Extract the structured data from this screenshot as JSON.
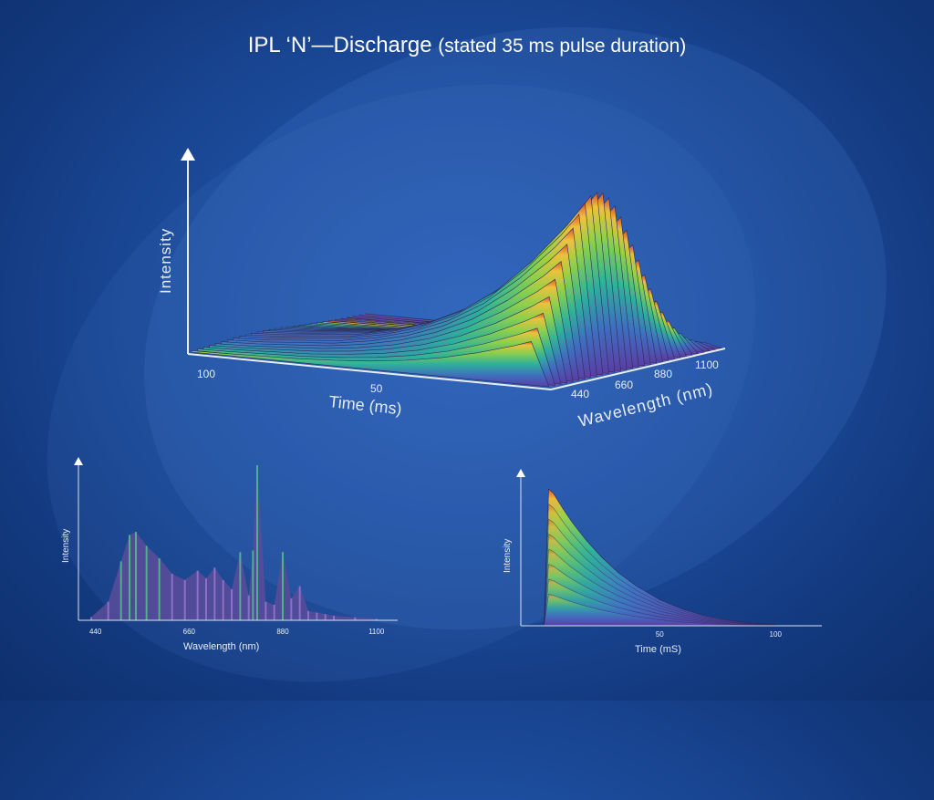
{
  "slide": {
    "title_main": "IPL ‘N’—Discharge",
    "title_sub": "(stated 35 ms pulse duration)"
  },
  "chart_data": [
    {
      "type": "area",
      "view": "3d-surface",
      "ylabel": "Intensity",
      "xlabel": "Time (ms)",
      "zlabel": "Wavelength (nm)",
      "time_ticks": [
        "100",
        "50"
      ],
      "wavelength_ticks": [
        "440",
        "660",
        "880",
        "1100"
      ],
      "x": [
        100,
        90,
        80,
        70,
        60,
        50,
        40,
        30,
        20,
        10,
        5,
        0
      ],
      "series": [
        {
          "values": [
            0.03,
            0.04,
            0.06,
            0.08,
            0.12,
            0.18,
            0.27,
            0.4,
            0.58,
            0.8,
            0.93,
            0.0
          ]
        }
      ]
    },
    {
      "type": "area",
      "ylabel": "Intensity",
      "xlabel": "Wavelength (nm)",
      "xticks": [
        "440",
        "660",
        "880",
        "1100"
      ],
      "xlim": [
        400,
        1150
      ],
      "x": [
        430,
        470,
        500,
        520,
        535,
        560,
        590,
        620,
        650,
        680,
        700,
        720,
        740,
        760,
        780,
        800,
        810,
        820,
        840,
        860,
        880,
        900,
        920,
        940,
        960,
        980,
        1000,
        1050,
        1100
      ],
      "series": [
        {
          "values": [
            0.02,
            0.12,
            0.38,
            0.55,
            0.57,
            0.48,
            0.4,
            0.3,
            0.26,
            0.32,
            0.27,
            0.34,
            0.26,
            0.2,
            0.44,
            0.16,
            0.45,
            1.0,
            0.12,
            0.1,
            0.44,
            0.14,
            0.22,
            0.06,
            0.05,
            0.04,
            0.03,
            0.02,
            0.01
          ]
        }
      ]
    },
    {
      "type": "area",
      "ylabel": "Intensity",
      "xlabel": "Time (mS)",
      "xticks": [
        "50",
        "100"
      ],
      "xlim": [
        -10,
        120
      ],
      "x": [
        0,
        2,
        4,
        8,
        12,
        18,
        25,
        32,
        40,
        50,
        60,
        70,
        80,
        90,
        100
      ],
      "series": [
        {
          "values": [
            0.0,
            1.0,
            0.97,
            0.86,
            0.76,
            0.63,
            0.5,
            0.39,
            0.29,
            0.19,
            0.12,
            0.07,
            0.04,
            0.02,
            0.01
          ]
        }
      ]
    }
  ]
}
